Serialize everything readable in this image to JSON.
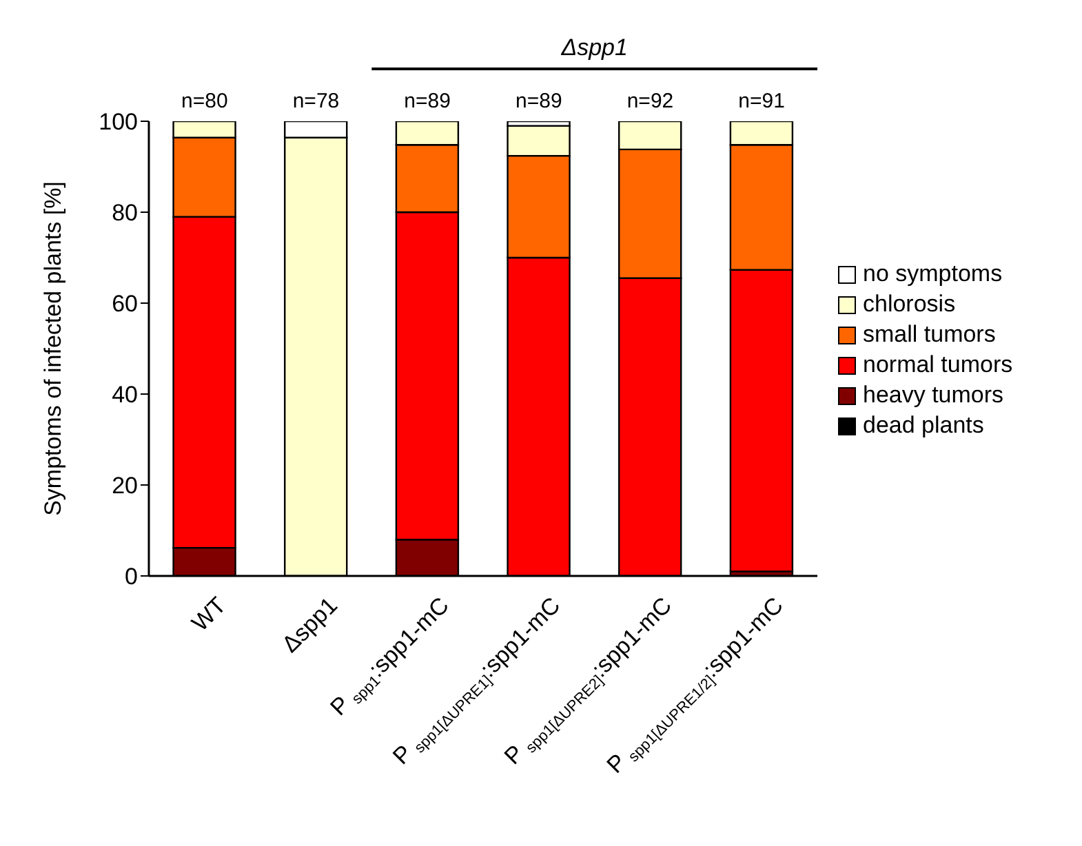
{
  "chart_data": {
    "type": "bar",
    "stacked": true,
    "categories": [
      "WT",
      "Δspp1",
      "P$_{spp1}$:spp1-mC",
      "P$_{spp1[ΔUPRE1]}$:spp1-mC",
      "P$_{spp1[ΔUPRE2]}$:spp1-mC",
      "P$_{spp1[ΔUPRE1/2]}$:spp1-mC"
    ],
    "series": [
      {
        "name": "dead plants",
        "color": "#000000",
        "values": [
          0,
          0,
          0,
          0,
          0,
          0
        ]
      },
      {
        "name": "heavy tumors",
        "color": "#800000",
        "values": [
          6.2,
          0,
          8,
          0,
          0,
          1
        ]
      },
      {
        "name": "normal tumors",
        "color": "#ff0000",
        "values": [
          72.8,
          0,
          72,
          70,
          65.5,
          66.3
        ]
      },
      {
        "name": "small tumors",
        "color": "#ff6600",
        "values": [
          17.4,
          0,
          14.8,
          22.4,
          28.3,
          27.5
        ]
      },
      {
        "name": "chlorosis",
        "color": "#ffffcc",
        "values": [
          3.6,
          96.4,
          5.2,
          6.6,
          6.2,
          5.2
        ]
      },
      {
        "name": "no symptoms",
        "color": "#ffffff",
        "values": [
          0,
          3.6,
          0,
          1,
          0,
          0
        ]
      }
    ],
    "ylabel": "Symptoms of infected plants [%]",
    "ylim": [
      0,
      100
    ],
    "yticks": [
      0,
      20,
      40,
      60,
      80,
      100
    ],
    "grid": false,
    "legend": "right",
    "annotations": [
      "n=80",
      "n=78",
      "n=89",
      "n=89",
      "n=92",
      "n=91",
      "Δspp1"
    ]
  }
}
